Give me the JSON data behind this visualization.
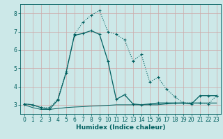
{
  "title": "",
  "xlabel": "Humidex (Indice chaleur)",
  "background_color": "#cce8e8",
  "grid_color": "#b0cccc",
  "line_color": "#005f5f",
  "xlim": [
    -0.5,
    23.5
  ],
  "ylim": [
    2.5,
    8.5
  ],
  "yticks": [
    3,
    4,
    5,
    6,
    7,
    8
  ],
  "xticks": [
    0,
    1,
    2,
    3,
    4,
    5,
    6,
    7,
    8,
    9,
    10,
    11,
    12,
    13,
    14,
    15,
    16,
    17,
    18,
    19,
    20,
    21,
    22,
    23
  ],
  "series1_x": [
    0,
    1,
    2,
    3,
    4,
    5,
    6,
    7,
    8,
    9,
    10,
    11,
    12,
    13,
    14,
    15,
    16,
    17,
    18,
    19,
    20,
    21,
    22,
    23
  ],
  "series1_y": [
    3.05,
    3.0,
    2.85,
    2.85,
    3.3,
    4.8,
    6.85,
    7.5,
    7.9,
    8.15,
    7.0,
    6.85,
    6.55,
    5.4,
    5.75,
    4.25,
    4.5,
    3.85,
    3.45,
    3.1,
    3.1,
    3.1,
    3.05,
    3.5
  ],
  "series2_x": [
    0,
    1,
    2,
    3,
    4,
    5,
    6,
    7,
    8,
    9,
    10,
    11,
    12,
    13,
    14,
    15,
    16,
    17,
    18,
    19,
    20,
    21,
    22,
    23
  ],
  "series2_y": [
    3.05,
    3.0,
    2.85,
    2.75,
    3.25,
    4.75,
    6.8,
    6.9,
    7.05,
    6.85,
    5.4,
    3.3,
    3.55,
    3.05,
    3.0,
    3.05,
    3.1,
    3.1,
    3.1,
    3.1,
    3.05,
    3.5,
    3.5,
    3.5
  ],
  "series3_x": [
    0,
    1,
    2,
    3,
    4,
    5,
    6,
    7,
    8,
    9,
    10,
    11,
    12,
    13,
    14,
    15,
    16,
    17,
    18,
    19,
    20,
    21,
    22,
    23
  ],
  "series3_y": [
    3.0,
    2.85,
    2.75,
    2.75,
    2.8,
    2.85,
    2.88,
    2.9,
    2.93,
    2.95,
    2.97,
    3.0,
    3.0,
    3.0,
    3.0,
    3.0,
    3.0,
    3.05,
    3.08,
    3.1,
    3.1,
    3.1,
    3.1,
    3.1
  ]
}
